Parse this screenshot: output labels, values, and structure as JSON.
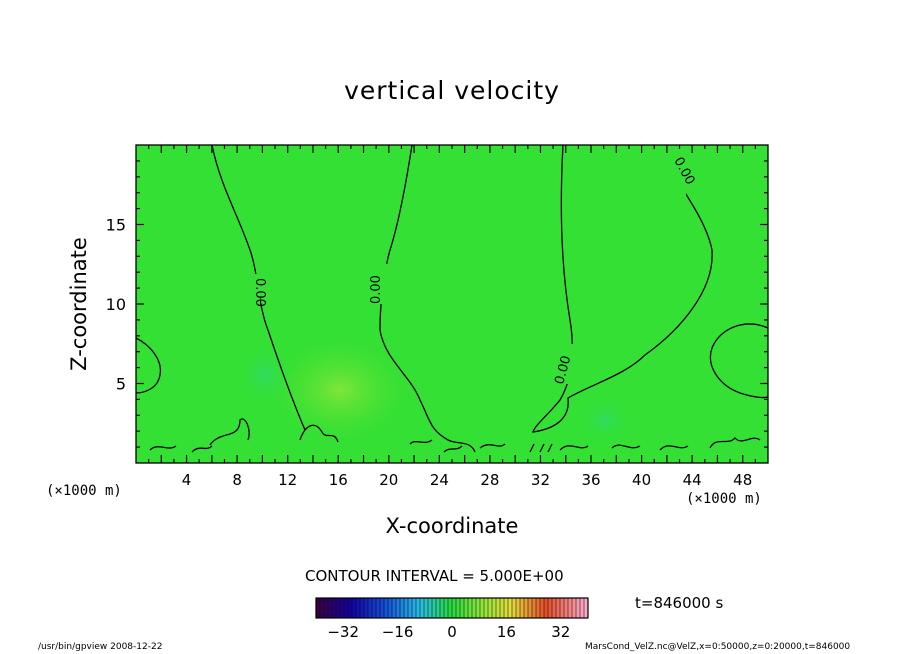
{
  "chart_data": {
    "type": "heatmap",
    "title": "vertical velocity",
    "xlabel": "X-coordinate",
    "ylabel": "Z-coordinate",
    "x_unit": "(×1000 m)",
    "xlim": [
      0,
      50
    ],
    "ylim": [
      0,
      20
    ],
    "x_ticks": [
      "4",
      "8",
      "12",
      "16",
      "20",
      "24",
      "28",
      "32",
      "36",
      "40",
      "44",
      "48"
    ],
    "y_ticks": [
      "5",
      "10",
      "15"
    ],
    "contour_labels": [
      "0.00",
      "0.00",
      "0.00",
      "0.00"
    ],
    "colorbar": {
      "ticks": [
        "-32",
        "-16",
        "0",
        "16",
        "32"
      ],
      "range": [
        -40,
        40
      ]
    },
    "contour_interval": "CONTOUR INTERVAL = 5.000E+00",
    "time": "t=846000 s",
    "colors": {
      "field": "#33e033",
      "contour": "#000000"
    }
  },
  "footer": {
    "left": "/usr/bin/gpview  2008-12-22",
    "right": "MarsCond_VelZ.nc@VelZ,x=0:50000,z=0:20000,t=846000"
  }
}
